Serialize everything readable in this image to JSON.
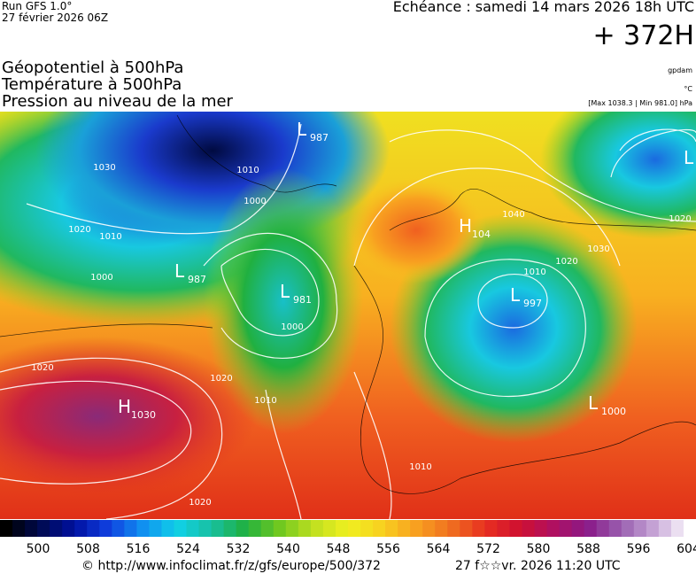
{
  "header": {
    "run": "Run GFS 1.0°",
    "date": "27 février 2026 06Z",
    "echeance": "Echéance : samedi 14 mars 2026 18h UTC",
    "lead": "+ 372H"
  },
  "titles": [
    "Géopotentiel à 500hPa",
    "Température à 500hPa",
    "Pression au niveau de la mer"
  ],
  "units": {
    "geo": "gpdam",
    "temp": "°C",
    "pressure": "[Max 1038.3 | Min 981.0] hPa"
  },
  "centers": [
    {
      "symbol": "H",
      "value": "1030"
    },
    {
      "symbol": "L",
      "value": "987"
    },
    {
      "symbol": "L",
      "value": "981"
    },
    {
      "symbol": "L",
      "value": "987"
    },
    {
      "symbol": "L",
      "value": "997"
    },
    {
      "symbol": "L",
      "value": "1000"
    },
    {
      "symbol": "H",
      "value": "104"
    },
    {
      "symbol": "L",
      "value": ""
    }
  ],
  "isobars": [
    "1030",
    "1020",
    "1010",
    "1000",
    "1010",
    "1000",
    "1020",
    "1020",
    "1020",
    "1010",
    "1040",
    "1030",
    "1020",
    "1010",
    "1000",
    "1010",
    "1020"
  ],
  "colorbar": [
    500,
    508,
    516,
    524,
    532,
    540,
    548,
    556,
    564,
    572,
    580,
    588,
    596,
    604
  ],
  "footer": {
    "url": "© http://www.infoclimat.fr/z/gfs/europe/500/372",
    "time": "27 f☆☆vr. 2026 11:20 UTC"
  }
}
